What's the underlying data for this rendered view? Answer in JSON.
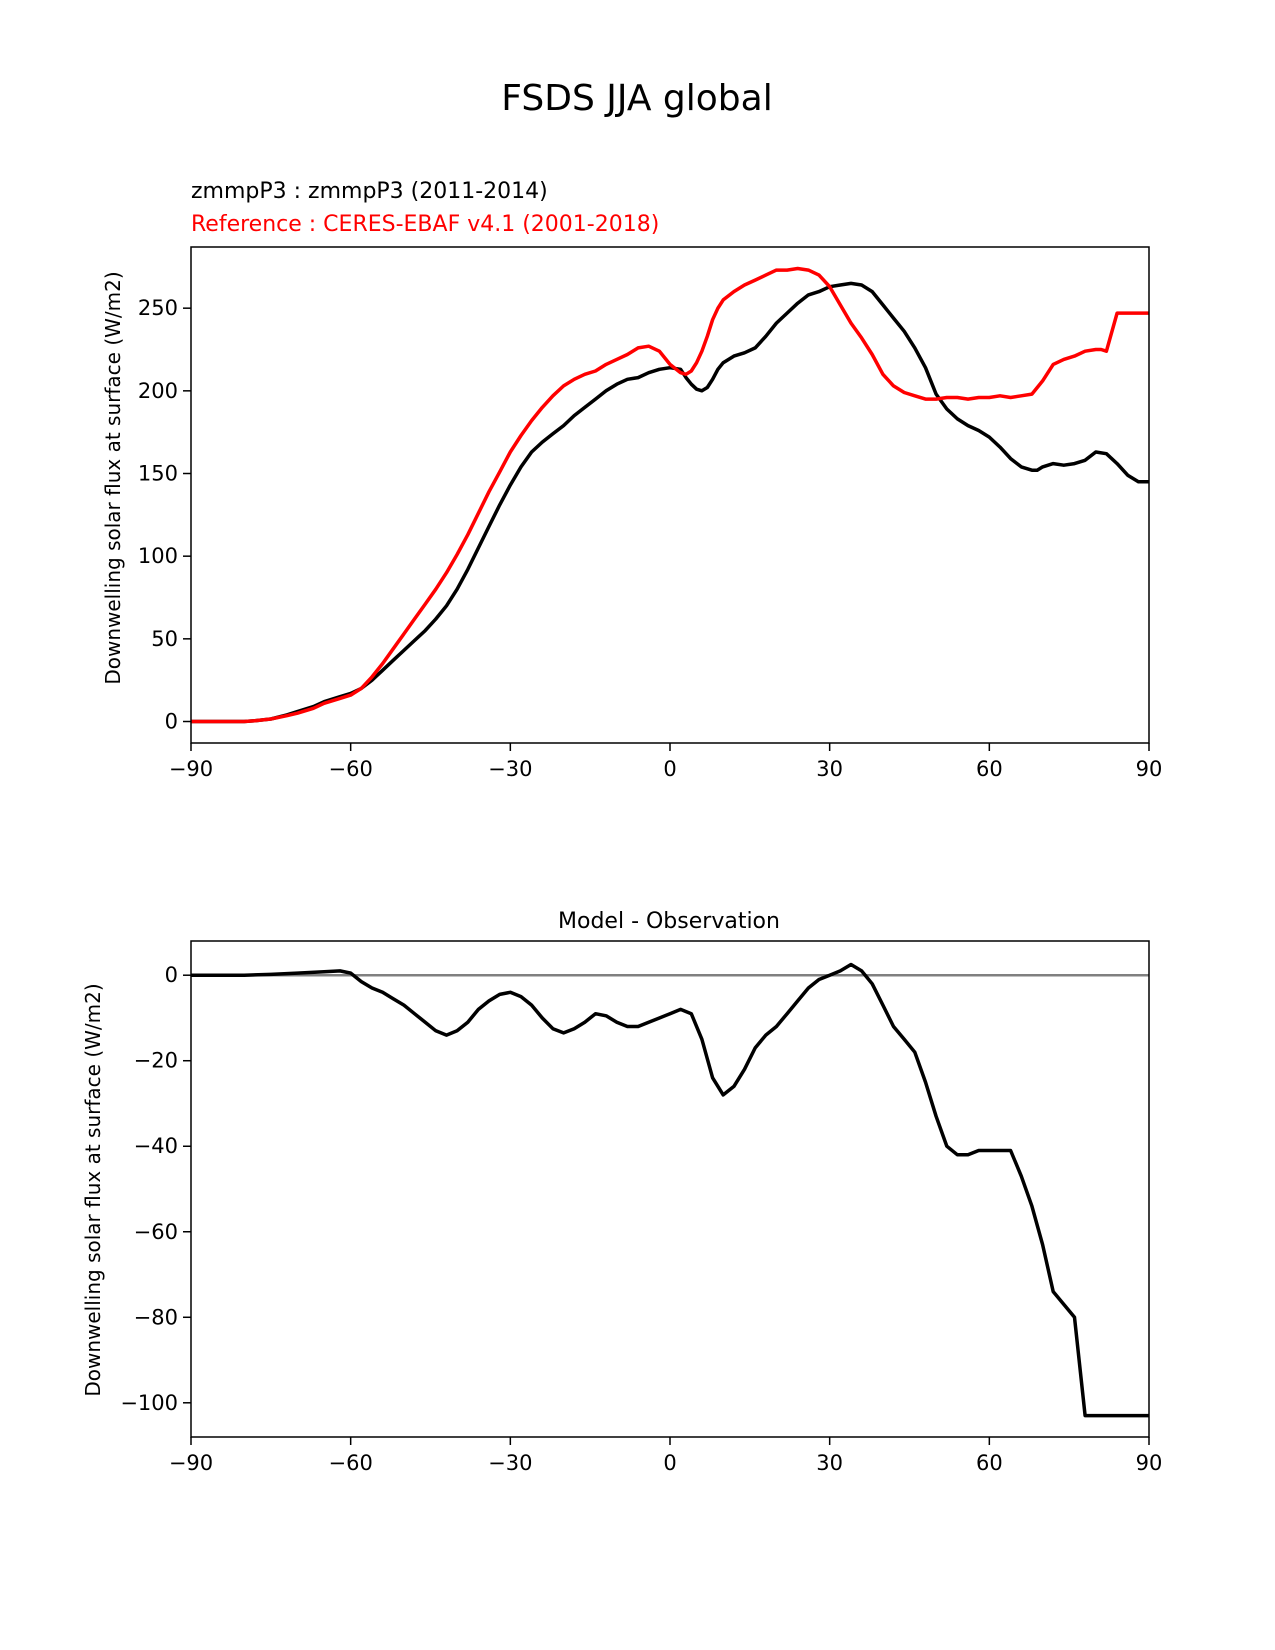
{
  "figure": {
    "suptitle": "FSDS JJA global"
  },
  "chart_data": [
    {
      "type": "line",
      "title_lines": [
        {
          "text": "zmmpP3 : zmmpP3 (2011-2014)",
          "color": "#000000"
        },
        {
          "text": "Reference : CERES-EBAF v4.1 (2001-2018)",
          "color": "#ff0000"
        }
      ],
      "xlabel": "",
      "ylabel": "Downwelling solar flux at surface (W/m2)",
      "xlim": [
        -90,
        90
      ],
      "ylim": [
        -13,
        287
      ],
      "xticks": [
        -90,
        -60,
        -30,
        0,
        30,
        60,
        90
      ],
      "xtick_labels": [
        "−90",
        "−60",
        "−30",
        "0",
        "30",
        "60",
        "90"
      ],
      "yticks": [
        0,
        50,
        100,
        150,
        200,
        250
      ],
      "ytick_labels": [
        "0",
        "50",
        "100",
        "150",
        "200",
        "250"
      ],
      "grid": false,
      "series": [
        {
          "name": "zmmpP3",
          "color": "#000000",
          "x": [
            -90,
            -85,
            -80,
            -78,
            -75,
            -72,
            -70,
            -67,
            -65,
            -62,
            -60,
            -58,
            -56,
            -54,
            -52,
            -50,
            -48,
            -46,
            -44,
            -42,
            -40,
            -38,
            -36,
            -34,
            -32,
            -30,
            -28,
            -26,
            -24,
            -22,
            -20,
            -18,
            -16,
            -14,
            -12,
            -10,
            -8,
            -6,
            -4,
            -2,
            0,
            2,
            3,
            4,
            5,
            6,
            7,
            8,
            9,
            10,
            12,
            14,
            16,
            18,
            20,
            22,
            24,
            26,
            28,
            30,
            32,
            34,
            36,
            38,
            40,
            42,
            44,
            46,
            48,
            50,
            52,
            54,
            56,
            58,
            60,
            62,
            64,
            66,
            68,
            69,
            70,
            72,
            74,
            76,
            78,
            80,
            82,
            84,
            86,
            88,
            90
          ],
          "y": [
            0,
            0,
            0,
            0.5,
            1.5,
            4,
            6,
            9,
            12,
            15,
            17,
            20,
            25,
            31,
            37,
            43,
            49,
            55,
            62,
            70,
            80,
            92,
            105,
            118,
            131,
            143,
            154,
            163,
            169,
            174,
            179,
            185,
            190,
            195,
            200,
            204,
            207,
            208,
            211,
            213,
            214,
            213,
            208,
            204,
            201,
            200,
            202,
            207,
            213,
            217,
            221,
            223,
            226,
            233,
            241,
            247,
            253,
            258,
            260,
            263,
            264,
            265,
            264,
            260,
            252,
            244,
            236,
            226,
            214,
            198,
            189,
            183,
            179,
            176,
            172,
            166,
            159,
            154,
            152,
            152,
            154,
            156,
            155,
            156,
            158,
            163,
            162,
            156,
            149,
            145,
            145
          ]
        },
        {
          "name": "CERES-EBAF v4.1",
          "color": "#ff0000",
          "x": [
            -90,
            -85,
            -80,
            -78,
            -75,
            -72,
            -70,
            -67,
            -65,
            -62,
            -60,
            -58,
            -56,
            -54,
            -52,
            -50,
            -48,
            -46,
            -44,
            -42,
            -40,
            -38,
            -36,
            -34,
            -32,
            -30,
            -28,
            -26,
            -24,
            -22,
            -20,
            -18,
            -16,
            -14,
            -12,
            -10,
            -8,
            -6,
            -4,
            -2,
            0,
            2,
            3,
            4,
            5,
            6,
            7,
            8,
            9,
            10,
            12,
            14,
            16,
            18,
            20,
            22,
            24,
            26,
            28,
            30,
            32,
            34,
            36,
            38,
            40,
            42,
            44,
            46,
            48,
            50,
            52,
            54,
            56,
            58,
            60,
            62,
            64,
            66,
            68,
            70,
            72,
            74,
            76,
            78,
            80,
            81,
            82,
            84,
            86,
            87,
            88,
            89,
            90
          ],
          "y": [
            0,
            0,
            0,
            0.5,
            1.5,
            3.5,
            5,
            8,
            11,
            14,
            16,
            20,
            27,
            35,
            44,
            53,
            62,
            71,
            80,
            90,
            101,
            113,
            126,
            139,
            151,
            163,
            173,
            182,
            190,
            197,
            203,
            207,
            210,
            212,
            216,
            219,
            222,
            226,
            227,
            224,
            216,
            211,
            210,
            212,
            217,
            224,
            233,
            243,
            250,
            255,
            260,
            264,
            267,
            270,
            273,
            273,
            274,
            273,
            270,
            263,
            252,
            241,
            232,
            222,
            210,
            203,
            199,
            197,
            195,
            195,
            196,
            196,
            195,
            196,
            196,
            197,
            196,
            197,
            198,
            206,
            216,
            219,
            221,
            224,
            225,
            225,
            224,
            247,
            247,
            247,
            247,
            247,
            247
          ]
        }
      ]
    },
    {
      "type": "line",
      "title": "Model - Observation",
      "xlabel": "",
      "ylabel": "Downwelling solar flux at surface (W/m2)",
      "xlim": [
        -90,
        90
      ],
      "ylim": [
        -108,
        8
      ],
      "xticks": [
        -90,
        -60,
        -30,
        0,
        30,
        60,
        90
      ],
      "xtick_labels": [
        "−90",
        "−60",
        "−30",
        "0",
        "30",
        "60",
        "90"
      ],
      "yticks": [
        0,
        -20,
        -40,
        -60,
        -80,
        -100
      ],
      "ytick_labels": [
        "0",
        "−20",
        "−40",
        "−60",
        "−80",
        "−100"
      ],
      "grid": false,
      "reference_line": {
        "y": 0,
        "color": "#808080"
      },
      "series": [
        {
          "name": "",
          "color": "#000000",
          "x": [
            -90,
            -80,
            -75,
            -70,
            -65,
            -62,
            -60,
            -58,
            -56,
            -54,
            -52,
            -50,
            -48,
            -46,
            -44,
            -42,
            -40,
            -38,
            -36,
            -34,
            -32,
            -30,
            -28,
            -26,
            -24,
            -22,
            -20,
            -18,
            -16,
            -14,
            -12,
            -10,
            -8,
            -6,
            -4,
            -2,
            0,
            2,
            4,
            6,
            8,
            10,
            12,
            14,
            16,
            18,
            20,
            22,
            24,
            26,
            28,
            30,
            32,
            34,
            36,
            38,
            40,
            42,
            44,
            46,
            48,
            50,
            52,
            54,
            56,
            58,
            60,
            62,
            64,
            66,
            68,
            70,
            72,
            74,
            76,
            78,
            80,
            82,
            84,
            86,
            88,
            89,
            90
          ],
          "y": [
            0,
            0,
            0.2,
            0.5,
            0.8,
            1,
            0.5,
            -1.5,
            -3,
            -4,
            -5.5,
            -7,
            -9,
            -11,
            -13,
            -14,
            -13,
            -11,
            -8,
            -6,
            -4.5,
            -4,
            -5,
            -7,
            -10,
            -12.5,
            -13.5,
            -12.5,
            -11,
            -9,
            -9.5,
            -11,
            -12,
            -12,
            -11,
            -10,
            -9,
            -8,
            -9,
            -15,
            -24,
            -28,
            -26,
            -22,
            -17,
            -14,
            -12,
            -9,
            -6,
            -3,
            -1,
            0,
            1,
            2.5,
            1,
            -2,
            -7,
            -12,
            -15,
            -18,
            -25,
            -33,
            -40,
            -42,
            -42,
            -41,
            -41,
            -41,
            -41,
            -47,
            -54,
            -63,
            -74,
            -77,
            -80,
            -103,
            -103,
            -103,
            -103,
            -103,
            -103,
            -103,
            -103
          ]
        }
      ]
    }
  ]
}
